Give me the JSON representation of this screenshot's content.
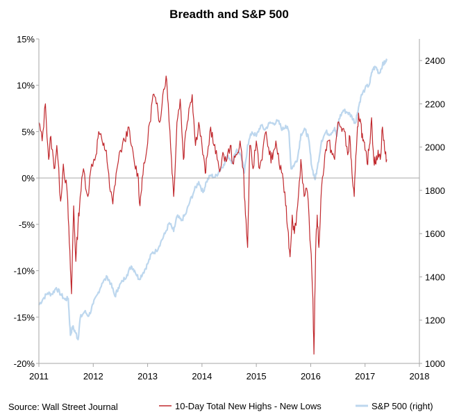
{
  "chart_data": {
    "type": "line",
    "title": "Breadth and S&P 500",
    "source_note": "Source: Wall Street Journal",
    "grid": false,
    "legend_position": "bottom",
    "x_axis": {
      "ticks": [
        "2011",
        "2012",
        "2013",
        "2014",
        "2015",
        "2016",
        "2017",
        "2018"
      ],
      "range": [
        2011,
        2018
      ]
    },
    "y_left": {
      "ticks": [
        "15%",
        "10%",
        "5%",
        "0%",
        "-5%",
        "-10%",
        "-15%",
        "-20%"
      ],
      "range": [
        -20,
        15
      ],
      "unit": "%"
    },
    "y_right": {
      "ticks": [
        "2400",
        "2200",
        "2000",
        "1800",
        "1600",
        "1400",
        "1200",
        "1000"
      ],
      "range": [
        1000,
        2500
      ]
    },
    "series": [
      {
        "name": "10-Day Total New Highs - New Lows",
        "axis": "left",
        "color": "#c0282d",
        "points": [
          [
            2011.0,
            6.0
          ],
          [
            2011.06,
            4.0
          ],
          [
            2011.12,
            8.0
          ],
          [
            2011.18,
            2.0
          ],
          [
            2011.22,
            4.5
          ],
          [
            2011.28,
            1.0
          ],
          [
            2011.33,
            3.5
          ],
          [
            2011.4,
            -2.5
          ],
          [
            2011.45,
            1.5
          ],
          [
            2011.52,
            -1.5
          ],
          [
            2011.56,
            -7.0
          ],
          [
            2011.6,
            -12.5
          ],
          [
            2011.64,
            -3.0
          ],
          [
            2011.68,
            -9.0
          ],
          [
            2011.72,
            -5.0
          ],
          [
            2011.76,
            -2.0
          ],
          [
            2011.82,
            1.0
          ],
          [
            2011.9,
            -2.0
          ],
          [
            2011.97,
            1.5
          ],
          [
            2012.05,
            2.5
          ],
          [
            2012.1,
            5.0
          ],
          [
            2012.18,
            3.5
          ],
          [
            2012.24,
            3.0
          ],
          [
            2012.3,
            -1.0
          ],
          [
            2012.36,
            -2.8
          ],
          [
            2012.42,
            0.5
          ],
          [
            2012.5,
            3.0
          ],
          [
            2012.58,
            4.0
          ],
          [
            2012.64,
            5.5
          ],
          [
            2012.7,
            3.5
          ],
          [
            2012.76,
            1.5
          ],
          [
            2012.82,
            0.5
          ],
          [
            2012.86,
            -3.0
          ],
          [
            2012.9,
            0.0
          ],
          [
            2012.96,
            2.0
          ],
          [
            2013.04,
            6.0
          ],
          [
            2013.1,
            9.0
          ],
          [
            2013.16,
            8.0
          ],
          [
            2013.22,
            6.0
          ],
          [
            2013.28,
            9.0
          ],
          [
            2013.34,
            11.0
          ],
          [
            2013.38,
            8.0
          ],
          [
            2013.44,
            2.0
          ],
          [
            2013.48,
            -2.0
          ],
          [
            2013.54,
            6.0
          ],
          [
            2013.6,
            8.5
          ],
          [
            2013.66,
            2.0
          ],
          [
            2013.7,
            5.0
          ],
          [
            2013.76,
            7.5
          ],
          [
            2013.82,
            9.0
          ],
          [
            2013.88,
            3.5
          ],
          [
            2013.94,
            6.0
          ],
          [
            2014.0,
            3.5
          ],
          [
            2014.06,
            0.5
          ],
          [
            2014.1,
            2.5
          ],
          [
            2014.16,
            5.5
          ],
          [
            2014.22,
            3.5
          ],
          [
            2014.28,
            2.0
          ],
          [
            2014.34,
            1.0
          ],
          [
            2014.4,
            2.5
          ],
          [
            2014.46,
            2.0
          ],
          [
            2014.52,
            3.5
          ],
          [
            2014.58,
            1.5
          ],
          [
            2014.64,
            2.5
          ],
          [
            2014.7,
            4.0
          ],
          [
            2014.76,
            1.0
          ],
          [
            2014.8,
            -4.0
          ],
          [
            2014.84,
            -7.5
          ],
          [
            2014.88,
            3.5
          ],
          [
            2014.94,
            1.0
          ],
          [
            2015.0,
            4.0
          ],
          [
            2015.06,
            1.0
          ],
          [
            2015.12,
            3.0
          ],
          [
            2015.18,
            5.0
          ],
          [
            2015.24,
            2.5
          ],
          [
            2015.3,
            2.0
          ],
          [
            2015.36,
            4.0
          ],
          [
            2015.42,
            1.5
          ],
          [
            2015.48,
            0.5
          ],
          [
            2015.54,
            -3.0
          ],
          [
            2015.58,
            -5.5
          ],
          [
            2015.62,
            -8.5
          ],
          [
            2015.66,
            -4.0
          ],
          [
            2015.7,
            -6.0
          ],
          [
            2015.76,
            -3.0
          ],
          [
            2015.82,
            2.0
          ],
          [
            2015.88,
            -2.0
          ],
          [
            2015.94,
            -1.5
          ],
          [
            2016.0,
            -7.5
          ],
          [
            2016.04,
            -13.0
          ],
          [
            2016.06,
            -19.0
          ],
          [
            2016.09,
            -8.0
          ],
          [
            2016.12,
            -4.0
          ],
          [
            2016.15,
            -7.5
          ],
          [
            2016.2,
            -1.0
          ],
          [
            2016.26,
            2.5
          ],
          [
            2016.32,
            4.0
          ],
          [
            2016.38,
            3.0
          ],
          [
            2016.44,
            2.0
          ],
          [
            2016.5,
            6.0
          ],
          [
            2016.56,
            5.5
          ],
          [
            2016.62,
            5.0
          ],
          [
            2016.68,
            2.5
          ],
          [
            2016.72,
            4.5
          ],
          [
            2016.76,
            0.5
          ],
          [
            2016.8,
            -2.0
          ],
          [
            2016.84,
            3.0
          ],
          [
            2016.88,
            7.0
          ],
          [
            2016.92,
            6.0
          ],
          [
            2016.96,
            4.0
          ],
          [
            2017.0,
            3.0
          ],
          [
            2017.04,
            1.5
          ],
          [
            2017.08,
            3.5
          ],
          [
            2017.12,
            6.5
          ],
          [
            2017.16,
            2.0
          ],
          [
            2017.2,
            1.5
          ],
          [
            2017.24,
            3.0
          ],
          [
            2017.28,
            2.0
          ],
          [
            2017.32,
            5.5
          ],
          [
            2017.36,
            3.0
          ],
          [
            2017.4,
            2.0
          ]
        ]
      },
      {
        "name": "S&P 500 (right)",
        "axis": "right",
        "color": "#bdd7ee",
        "points": [
          [
            2011.0,
            1270
          ],
          [
            2011.08,
            1300
          ],
          [
            2011.16,
            1325
          ],
          [
            2011.24,
            1320
          ],
          [
            2011.32,
            1350
          ],
          [
            2011.4,
            1320
          ],
          [
            2011.48,
            1295
          ],
          [
            2011.54,
            1300
          ],
          [
            2011.58,
            1130
          ],
          [
            2011.62,
            1170
          ],
          [
            2011.68,
            1140
          ],
          [
            2011.72,
            1110
          ],
          [
            2011.76,
            1210
          ],
          [
            2011.84,
            1240
          ],
          [
            2011.92,
            1220
          ],
          [
            2012.0,
            1275
          ],
          [
            2012.08,
            1320
          ],
          [
            2012.16,
            1370
          ],
          [
            2012.26,
            1400
          ],
          [
            2012.32,
            1370
          ],
          [
            2012.4,
            1310
          ],
          [
            2012.46,
            1350
          ],
          [
            2012.54,
            1380
          ],
          [
            2012.62,
            1410
          ],
          [
            2012.7,
            1450
          ],
          [
            2012.76,
            1430
          ],
          [
            2012.84,
            1390
          ],
          [
            2012.92,
            1420
          ],
          [
            2013.0,
            1460
          ],
          [
            2013.08,
            1510
          ],
          [
            2013.16,
            1520
          ],
          [
            2013.24,
            1560
          ],
          [
            2013.32,
            1600
          ],
          [
            2013.4,
            1650
          ],
          [
            2013.48,
            1610
          ],
          [
            2013.54,
            1680
          ],
          [
            2013.62,
            1660
          ],
          [
            2013.7,
            1690
          ],
          [
            2013.78,
            1750
          ],
          [
            2013.86,
            1800
          ],
          [
            2013.94,
            1840
          ],
          [
            2014.02,
            1790
          ],
          [
            2014.08,
            1840
          ],
          [
            2014.16,
            1870
          ],
          [
            2014.24,
            1860
          ],
          [
            2014.32,
            1890
          ],
          [
            2014.4,
            1920
          ],
          [
            2014.48,
            1960
          ],
          [
            2014.56,
            1930
          ],
          [
            2014.64,
            1990
          ],
          [
            2014.72,
            1960
          ],
          [
            2014.78,
            1880
          ],
          [
            2014.84,
            2010
          ],
          [
            2014.92,
            2070
          ],
          [
            2015.0,
            2050
          ],
          [
            2015.08,
            2100
          ],
          [
            2015.16,
            2080
          ],
          [
            2015.24,
            2110
          ],
          [
            2015.32,
            2110
          ],
          [
            2015.4,
            2120
          ],
          [
            2015.48,
            2080
          ],
          [
            2015.54,
            2100
          ],
          [
            2015.6,
            2070
          ],
          [
            2015.64,
            1900
          ],
          [
            2015.7,
            1920
          ],
          [
            2015.76,
            1950
          ],
          [
            2015.82,
            2060
          ],
          [
            2015.9,
            2080
          ],
          [
            2015.96,
            2040
          ],
          [
            2016.02,
            1910
          ],
          [
            2016.08,
            1850
          ],
          [
            2016.12,
            1900
          ],
          [
            2016.2,
            2030
          ],
          [
            2016.28,
            2070
          ],
          [
            2016.36,
            2060
          ],
          [
            2016.44,
            2090
          ],
          [
            2016.48,
            2050
          ],
          [
            2016.52,
            2130
          ],
          [
            2016.6,
            2170
          ],
          [
            2016.68,
            2160
          ],
          [
            2016.76,
            2140
          ],
          [
            2016.82,
            2110
          ],
          [
            2016.86,
            2160
          ],
          [
            2016.92,
            2230
          ],
          [
            2017.0,
            2270
          ],
          [
            2017.08,
            2290
          ],
          [
            2017.14,
            2360
          ],
          [
            2017.2,
            2370
          ],
          [
            2017.26,
            2340
          ],
          [
            2017.32,
            2380
          ],
          [
            2017.36,
            2390
          ],
          [
            2017.4,
            2400
          ]
        ]
      }
    ]
  }
}
